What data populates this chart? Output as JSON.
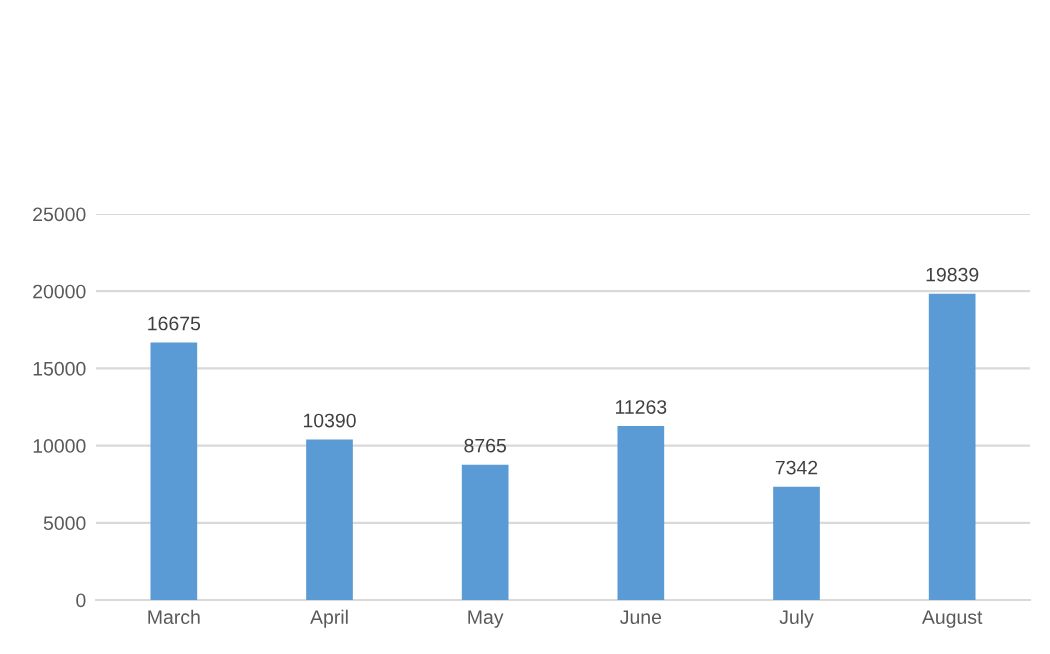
{
  "chart_data": {
    "type": "bar",
    "categories": [
      "March",
      "April",
      "May",
      "June",
      "July",
      "August"
    ],
    "values": [
      16675,
      10390,
      8765,
      11263,
      7342,
      19839
    ],
    "color": "#5b9bd5",
    "ylim": [
      0,
      25000
    ],
    "yticks": [
      0,
      5000,
      10000,
      15000,
      20000,
      25000
    ],
    "grid": "y",
    "data_labels": true
  }
}
